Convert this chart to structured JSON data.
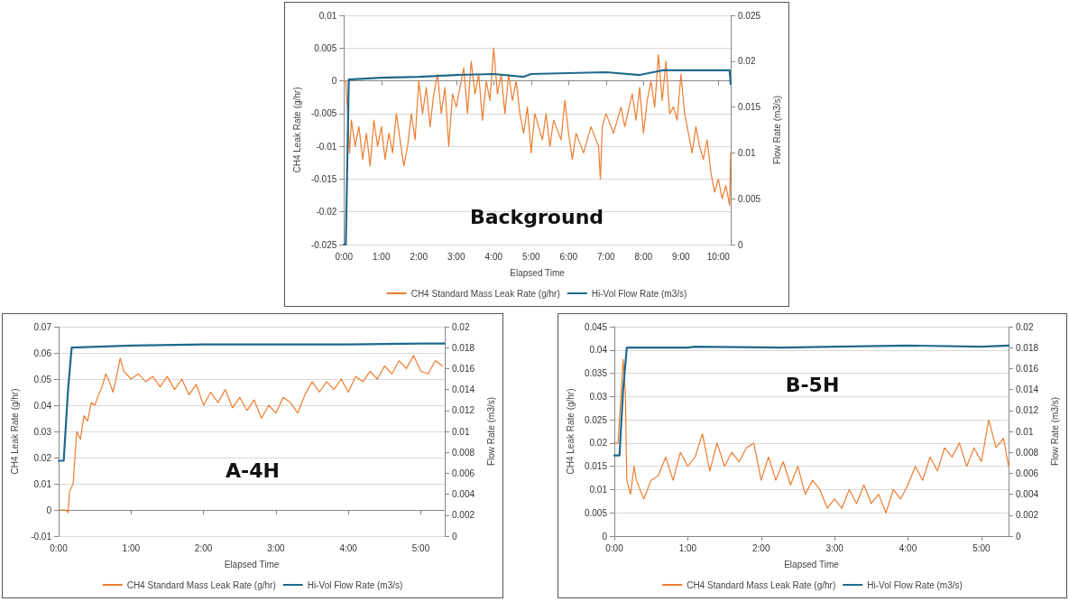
{
  "chart_data": [
    {
      "type": "line",
      "title": "Background",
      "xlabel": "Elapsed Time",
      "ylabel": "CH4 Leak Rate (g/hr)",
      "y2label": "Flow Rate (m3/s)",
      "legend": "bottom",
      "grid": "y",
      "marker": "none",
      "line_style": "solid",
      "xlim": [
        0,
        10.33
      ],
      "xticks": [
        {
          "value": 0,
          "label": "0:00"
        },
        {
          "value": 1,
          "label": "1:00"
        },
        {
          "value": 2,
          "label": "2:00"
        },
        {
          "value": 3,
          "label": "3:00"
        },
        {
          "value": 4,
          "label": "4:00"
        },
        {
          "value": 5,
          "label": "5:00"
        },
        {
          "value": 6,
          "label": "6:00"
        },
        {
          "value": 7,
          "label": "7:00"
        },
        {
          "value": 8,
          "label": "8:00"
        },
        {
          "value": 9,
          "label": "9:00"
        },
        {
          "value": 10,
          "label": "10:00"
        }
      ],
      "ylim": [
        -0.025,
        0.01
      ],
      "yticks": [
        -0.025,
        -0.02,
        -0.015,
        -0.01,
        -0.005,
        0,
        0.005,
        0.01
      ],
      "y2lim": [
        0,
        0.025
      ],
      "y2ticks": [
        0,
        0.005,
        0.01,
        0.015,
        0.02,
        0.025
      ],
      "series": [
        {
          "name": "CH4 Standard Mass Leak Rate (g/hr)",
          "color": "#ed7d31",
          "x": [
            0,
            0.05,
            0.1,
            0.15,
            0.2,
            0.3,
            0.4,
            0.5,
            0.6,
            0.7,
            0.8,
            0.9,
            1.0,
            1.1,
            1.2,
            1.3,
            1.4,
            1.5,
            1.6,
            1.7,
            1.8,
            1.9,
            2.0,
            2.1,
            2.2,
            2.3,
            2.4,
            2.5,
            2.6,
            2.7,
            2.8,
            2.9,
            3.0,
            3.2,
            3.3,
            3.4,
            3.5,
            3.6,
            3.7,
            3.8,
            3.9,
            4.0,
            4.1,
            4.2,
            4.3,
            4.4,
            4.5,
            4.6,
            4.7,
            4.8,
            4.9,
            5.0,
            5.1,
            5.3,
            5.4,
            5.5,
            5.6,
            5.8,
            5.9,
            6.0,
            6.1,
            6.2,
            6.4,
            6.6,
            6.8,
            6.85,
            6.9,
            7.0,
            7.2,
            7.4,
            7.5,
            7.7,
            7.8,
            7.9,
            8.0,
            8.1,
            8.2,
            8.3,
            8.4,
            8.5,
            8.6,
            8.7,
            8.8,
            8.9,
            9.0,
            9.1,
            9.2,
            9.3,
            9.4,
            9.5,
            9.6,
            9.7,
            9.8,
            9.9,
            10.0,
            10.1,
            10.2,
            10.3,
            10.33
          ],
          "values": [
            0,
            0,
            -0.005,
            -0.011,
            -0.006,
            -0.01,
            -0.007,
            -0.012,
            -0.008,
            -0.013,
            -0.006,
            -0.01,
            -0.007,
            -0.012,
            -0.008,
            -0.011,
            -0.005,
            -0.009,
            -0.013,
            -0.01,
            -0.005,
            -0.009,
            0,
            -0.005,
            -0.001,
            -0.007,
            -0.002,
            0.001,
            -0.005,
            -0.001,
            -0.01,
            -0.002,
            -0.004,
            0.002,
            -0.005,
            0.003,
            -0.002,
            0.001,
            -0.006,
            0,
            -0.003,
            0.005,
            -0.002,
            0.001,
            -0.005,
            0.001,
            -0.003,
            0,
            -0.005,
            -0.008,
            -0.004,
            -0.011,
            -0.005,
            -0.009,
            -0.005,
            -0.01,
            -0.006,
            -0.009,
            -0.003,
            -0.008,
            -0.012,
            -0.008,
            -0.011,
            -0.007,
            -0.01,
            -0.015,
            -0.007,
            -0.005,
            -0.008,
            -0.004,
            -0.007,
            -0.002,
            -0.006,
            -0.001,
            -0.008,
            -0.003,
            0,
            -0.004,
            0.004,
            -0.003,
            0.003,
            -0.005,
            -0.004,
            -0.006,
            0.001,
            -0.005,
            -0.008,
            -0.011,
            -0.007,
            -0.01,
            -0.012,
            -0.009,
            -0.014,
            -0.017,
            -0.015,
            -0.018,
            -0.016,
            -0.019,
            -0.011
          ]
        },
        {
          "name": "Hi-Vol Flow Rate (m3/s)",
          "color": "#1f6a8c",
          "axis": "y2",
          "x": [
            0,
            0.05,
            0.13,
            1,
            2,
            3,
            4,
            4.8,
            5,
            6,
            7,
            7.9,
            8.5,
            9,
            10,
            10.3,
            10.33
          ],
          "values": [
            0,
            0,
            0.018,
            0.0182,
            0.0183,
            0.0185,
            0.0186,
            0.0183,
            0.0186,
            0.0187,
            0.0188,
            0.0185,
            0.019,
            0.019,
            0.019,
            0.019,
            0.0175
          ]
        }
      ]
    },
    {
      "type": "line",
      "title": "A-4H",
      "xlabel": "Elapsed Time",
      "ylabel": "CH4 Leak Rate (g/hr)",
      "y2label": "Flow Rate (m3/s)",
      "legend": "bottom",
      "grid": "y",
      "marker": "none",
      "line_style": "solid",
      "xlim": [
        0,
        5.33
      ],
      "xticks": [
        {
          "value": 0,
          "label": "0:00"
        },
        {
          "value": 1,
          "label": "1:00"
        },
        {
          "value": 2,
          "label": "2:00"
        },
        {
          "value": 3,
          "label": "3:00"
        },
        {
          "value": 4,
          "label": "4:00"
        },
        {
          "value": 5,
          "label": "5:00"
        }
      ],
      "ylim": [
        -0.01,
        0.07
      ],
      "yticks": [
        -0.01,
        0,
        0.01,
        0.02,
        0.03,
        0.04,
        0.05,
        0.06,
        0.07
      ],
      "y2lim": [
        0,
        0.02
      ],
      "y2ticks": [
        0,
        0.002,
        0.004,
        0.006,
        0.008,
        0.01,
        0.012,
        0.014,
        0.016,
        0.018,
        0.02
      ],
      "series": [
        {
          "name": "CH4 Standard Mass Leak Rate (g/hr)",
          "color": "#ed7d31",
          "x": [
            0,
            0.1,
            0.13,
            0.15,
            0.2,
            0.25,
            0.3,
            0.35,
            0.4,
            0.45,
            0.5,
            0.55,
            0.6,
            0.65,
            0.7,
            0.75,
            0.8,
            0.85,
            0.9,
            1.0,
            1.1,
            1.2,
            1.3,
            1.4,
            1.5,
            1.6,
            1.7,
            1.8,
            1.9,
            2.0,
            2.1,
            2.2,
            2.3,
            2.4,
            2.5,
            2.6,
            2.7,
            2.8,
            2.9,
            3.0,
            3.1,
            3.2,
            3.3,
            3.4,
            3.5,
            3.6,
            3.7,
            3.8,
            3.9,
            4.0,
            4.1,
            4.2,
            4.3,
            4.4,
            4.5,
            4.6,
            4.7,
            4.8,
            4.9,
            5.0,
            5.1,
            5.2,
            5.3
          ],
          "values": [
            0,
            0,
            -0.001,
            0.007,
            0.01,
            0.03,
            0.027,
            0.036,
            0.034,
            0.041,
            0.04,
            0.044,
            0.047,
            0.052,
            0.049,
            0.045,
            0.051,
            0.058,
            0.053,
            0.05,
            0.052,
            0.049,
            0.051,
            0.047,
            0.051,
            0.046,
            0.05,
            0.044,
            0.048,
            0.04,
            0.045,
            0.041,
            0.046,
            0.039,
            0.043,
            0.038,
            0.042,
            0.035,
            0.04,
            0.037,
            0.043,
            0.041,
            0.037,
            0.044,
            0.049,
            0.045,
            0.049,
            0.046,
            0.05,
            0.045,
            0.051,
            0.049,
            0.053,
            0.05,
            0.055,
            0.052,
            0.057,
            0.054,
            0.059,
            0.053,
            0.052,
            0.057,
            0.055
          ]
        },
        {
          "name": "Hi-Vol Flow Rate (m3/s)",
          "color": "#1f6a8c",
          "axis": "y2",
          "x": [
            0,
            0.07,
            0.13,
            0.18,
            1,
            2,
            3,
            4,
            5,
            5.33
          ],
          "values": [
            0.0072,
            0.0072,
            0.014,
            0.018,
            0.0182,
            0.0183,
            0.0183,
            0.0183,
            0.0184,
            0.0184
          ]
        }
      ]
    },
    {
      "type": "line",
      "title": "B-5H",
      "xlabel": "Elapsed Time",
      "ylabel": "CH4 Leak Rate (g/hr)",
      "y2label": "Flow Rate (m3/s)",
      "legend": "bottom",
      "grid": "y",
      "marker": "none",
      "line_style": "solid",
      "xlim": [
        0,
        5.37
      ],
      "xticks": [
        {
          "value": 0,
          "label": "0:00"
        },
        {
          "value": 1,
          "label": "1:00"
        },
        {
          "value": 2,
          "label": "2:00"
        },
        {
          "value": 3,
          "label": "3:00"
        },
        {
          "value": 4,
          "label": "4:00"
        },
        {
          "value": 5,
          "label": "5:00"
        }
      ],
      "ylim": [
        0,
        0.045
      ],
      "yticks": [
        0,
        0.005,
        0.01,
        0.015,
        0.02,
        0.025,
        0.03,
        0.035,
        0.04,
        0.045
      ],
      "y2lim": [
        0,
        0.02
      ],
      "y2ticks": [
        0,
        0.002,
        0.004,
        0.006,
        0.008,
        0.01,
        0.012,
        0.014,
        0.016,
        0.018,
        0.02
      ],
      "series": [
        {
          "name": "CH4 Standard Mass Leak Rate (g/hr)",
          "color": "#ed7d31",
          "x": [
            0,
            0.05,
            0.12,
            0.15,
            0.17,
            0.22,
            0.27,
            0.3,
            0.4,
            0.5,
            0.6,
            0.7,
            0.8,
            0.9,
            1.0,
            1.1,
            1.2,
            1.3,
            1.4,
            1.5,
            1.6,
            1.7,
            1.8,
            1.9,
            2.0,
            2.1,
            2.2,
            2.3,
            2.4,
            2.5,
            2.6,
            2.7,
            2.8,
            2.9,
            3.0,
            3.1,
            3.2,
            3.3,
            3.4,
            3.5,
            3.6,
            3.7,
            3.8,
            3.9,
            4.0,
            4.1,
            4.2,
            4.3,
            4.4,
            4.5,
            4.6,
            4.7,
            4.8,
            4.9,
            5.0,
            5.1,
            5.2,
            5.3,
            5.37
          ],
          "values": [
            0.02,
            0.02,
            0.038,
            0.031,
            0.012,
            0.009,
            0.015,
            0.012,
            0.008,
            0.012,
            0.013,
            0.017,
            0.012,
            0.018,
            0.015,
            0.017,
            0.022,
            0.014,
            0.02,
            0.015,
            0.018,
            0.016,
            0.019,
            0.02,
            0.012,
            0.017,
            0.012,
            0.016,
            0.011,
            0.015,
            0.009,
            0.012,
            0.01,
            0.006,
            0.008,
            0.006,
            0.01,
            0.007,
            0.011,
            0.007,
            0.009,
            0.005,
            0.01,
            0.008,
            0.011,
            0.015,
            0.012,
            0.017,
            0.014,
            0.019,
            0.017,
            0.02,
            0.015,
            0.019,
            0.016,
            0.025,
            0.019,
            0.021,
            0.015
          ]
        },
        {
          "name": "Hi-Vol Flow Rate (m3/s)",
          "color": "#1f6a8c",
          "axis": "y2",
          "x": [
            0,
            0.07,
            0.12,
            0.17,
            1,
            1.1,
            2.3,
            3,
            4,
            5,
            5.37
          ],
          "values": [
            0.0077,
            0.0077,
            0.014,
            0.018,
            0.018,
            0.0181,
            0.018,
            0.0181,
            0.0182,
            0.0181,
            0.0182
          ]
        }
      ]
    }
  ]
}
